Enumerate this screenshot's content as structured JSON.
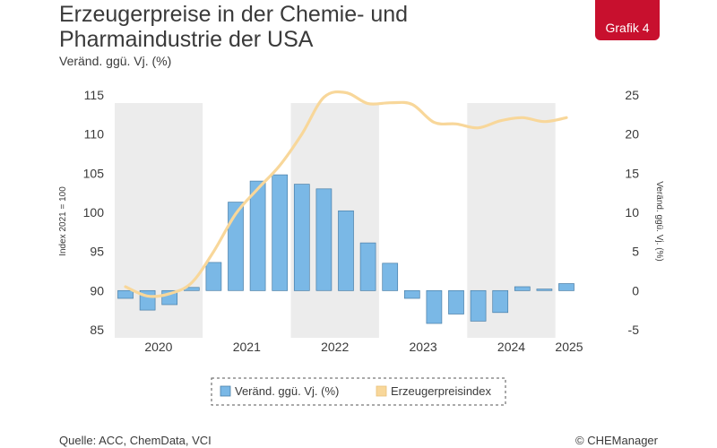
{
  "header": {
    "title_line1": "Erzeugerpreise in der Chemie- und",
    "title_line2": "Pharmaindustrie der USA",
    "subtitle": "Veränd. ggü. Vj. (%)",
    "badge": "Grafik 4"
  },
  "footer": {
    "source": "Quelle: ACC, ChemData, VCI",
    "copyright": "© CHEManager"
  },
  "colors": {
    "bar_fill": "#7ab8e6",
    "bar_stroke": "#4a7fa8",
    "line": "#f8d79a",
    "band": "#ececec",
    "badge": "#c8102e"
  },
  "chart_data": {
    "type": "bar+line",
    "x": [
      "Q1 2020",
      "Q2 2020",
      "Q3 2020",
      "Q4 2020",
      "Q1 2021",
      "Q2 2021",
      "Q3 2021",
      "Q4 2021",
      "Q1 2022",
      "Q2 2022",
      "Q3 2022",
      "Q4 2022",
      "Q1 2023",
      "Q2 2023",
      "Q3 2023",
      "Q4 2023",
      "Q1 2024",
      "Q2 2024",
      "Q3 2024",
      "Q4 2024",
      "Q1 2025"
    ],
    "year_labels": [
      "2020",
      "2021",
      "2022",
      "2023",
      "2024",
      "2025"
    ],
    "series": [
      {
        "name": "Veränd. ggü. Vj. (%)",
        "kind": "bar",
        "axis": "right",
        "values": [
          -1.0,
          -2.5,
          -1.8,
          0.4,
          3.6,
          11.3,
          14.0,
          14.8,
          13.6,
          13.0,
          10.2,
          6.1,
          3.5,
          -1.0,
          -4.2,
          -3.0,
          -3.9,
          -2.8,
          0.5,
          0.2,
          0.9
        ]
      },
      {
        "name": "Erzeugerpreisindex",
        "kind": "line",
        "axis": "left",
        "values": [
          90.5,
          89.3,
          89.6,
          91.0,
          95.0,
          99.8,
          103.0,
          106.0,
          110.0,
          114.7,
          115.3,
          113.9,
          114.0,
          113.8,
          111.5,
          111.3,
          110.8,
          111.7,
          112.1,
          111.6,
          112.1
        ]
      }
    ],
    "y_left": {
      "label": "Index 2021 = 100",
      "min": 85,
      "max": 115,
      "ticks": [
        85,
        90,
        95,
        100,
        105,
        110,
        115
      ]
    },
    "y_right": {
      "label": "Veränd. ggü. Vj. (%)",
      "min": -5,
      "max": 25,
      "ticks": [
        -5,
        0,
        5,
        10,
        15,
        20,
        25
      ]
    },
    "grid": false,
    "legend": {
      "position": "bottom-center",
      "labels": [
        "Veränd. ggü. Vj. (%)",
        "Erzeugerpreisindex"
      ]
    }
  }
}
